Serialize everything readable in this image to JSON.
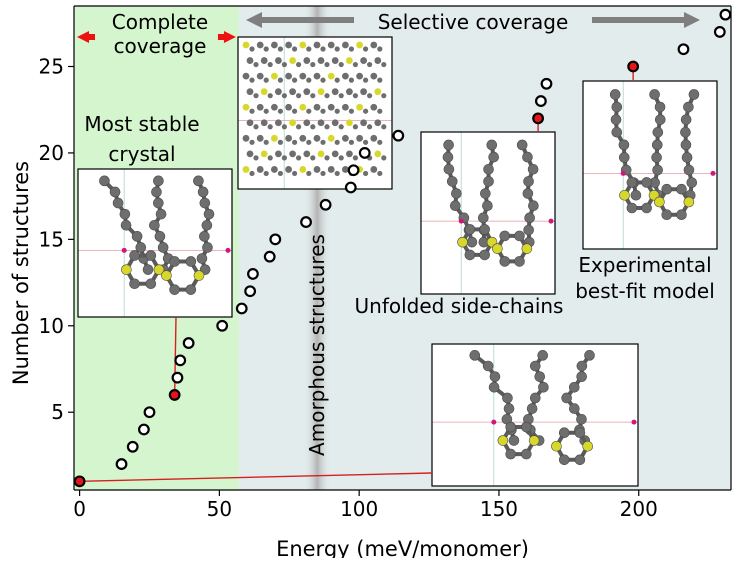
{
  "chart_data": {
    "type": "scatter",
    "xlabel": "Energy (meV/monomer)",
    "ylabel": "Number of structures",
    "xlim": [
      -2,
      233
    ],
    "ylim": [
      0.5,
      28.5
    ],
    "x_ticks": [
      0,
      50,
      100,
      150,
      200
    ],
    "y_ticks": [
      5,
      10,
      15,
      20,
      25
    ],
    "x_tick_labels": [
      "0",
      "50",
      "100",
      "150",
      "200"
    ],
    "y_tick_labels": [
      "5",
      "10",
      "15",
      "20",
      "25"
    ],
    "grid": false,
    "regions": [
      {
        "label": "Complete coverage",
        "x_start": -2,
        "x_end": 57,
        "color": "#d5f5cf"
      },
      {
        "label": "Selective coverage",
        "x_start": 57,
        "x_end": 233,
        "color": "#e3ecec"
      },
      {
        "label": "Amorphous structures",
        "x_start": 80,
        "x_end": 90,
        "color": "#c3c3c3"
      }
    ],
    "series": [
      {
        "marker": "open-circle",
        "points": [
          [
            15,
            2
          ],
          [
            19,
            3
          ],
          [
            23,
            4
          ],
          [
            25,
            5
          ],
          [
            35,
            7
          ],
          [
            36,
            8
          ],
          [
            39,
            9
          ],
          [
            51,
            10
          ],
          [
            58,
            11
          ],
          [
            61,
            12
          ],
          [
            62,
            13
          ],
          [
            68,
            14
          ],
          [
            70,
            15
          ],
          [
            81,
            16
          ],
          [
            88,
            17
          ],
          [
            97,
            18
          ],
          [
            98,
            19
          ],
          [
            102,
            20
          ],
          [
            114,
            21
          ],
          [
            165,
            23
          ],
          [
            167,
            24
          ],
          [
            216,
            26
          ],
          [
            229,
            27
          ],
          [
            231,
            28
          ]
        ]
      },
      {
        "marker": "red-filled-circle",
        "points": [
          [
            0,
            1
          ],
          [
            34,
            6
          ],
          [
            164,
            22
          ],
          [
            198,
            25
          ]
        ]
      }
    ],
    "annotations": {
      "complete_coverage": "Complete\ncoverage",
      "selective_coverage": "Selective coverage",
      "most_stable": "Most stable\ncrystal",
      "amorphous": "Amorphous structures",
      "unfolded": "Unfolded side-chains",
      "experimental": "Experimental\nbest-fit model"
    },
    "colors": {
      "highlight_marker": "#e8141a",
      "arrow_red": "#ee1111",
      "arrow_gray": "#7f7f7f",
      "atom_carbon": "#6e6e6e",
      "atom_sulfur": "#d8d82a",
      "atom_pink": "#d0177b"
    }
  }
}
